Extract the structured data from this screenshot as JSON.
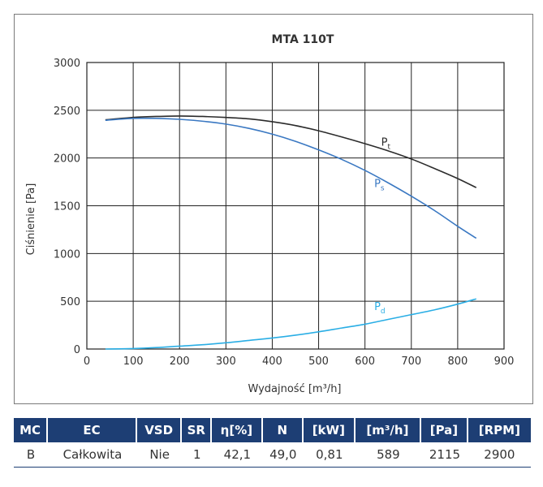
{
  "chart_data": {
    "type": "line",
    "title": "MTA 110T",
    "xlabel": "Wydajność [m³/h]",
    "ylabel": "Ciśnienie [Pa]",
    "xlim": [
      0,
      900
    ],
    "ylim": [
      0,
      3000
    ],
    "xticks": [
      0,
      100,
      200,
      300,
      400,
      500,
      600,
      700,
      800,
      900
    ],
    "yticks": [
      0,
      500,
      1000,
      1500,
      2000,
      2500,
      3000
    ],
    "grid": true,
    "series": [
      {
        "name": "Pt",
        "label_main": "P",
        "label_sub": "t",
        "color": "#2b2b2b",
        "x": [
          40,
          100,
          150,
          200,
          250,
          300,
          350,
          400,
          450,
          500,
          550,
          600,
          650,
          700,
          750,
          800,
          840
        ],
        "y": [
          2400,
          2425,
          2435,
          2440,
          2435,
          2425,
          2410,
          2380,
          2340,
          2285,
          2220,
          2150,
          2075,
          1990,
          1890,
          1785,
          1690
        ]
      },
      {
        "name": "Ps",
        "label_main": "P",
        "label_sub": "s",
        "color": "#3a78c2",
        "x": [
          40,
          100,
          150,
          200,
          250,
          300,
          350,
          400,
          450,
          500,
          550,
          600,
          650,
          700,
          750,
          800,
          840
        ],
        "y": [
          2395,
          2415,
          2415,
          2405,
          2385,
          2355,
          2310,
          2250,
          2175,
          2085,
          1985,
          1870,
          1740,
          1600,
          1450,
          1285,
          1160
        ]
      },
      {
        "name": "Pd",
        "label_main": "P",
        "label_sub": "d",
        "color": "#2aaee5",
        "x": [
          40,
          100,
          150,
          200,
          250,
          300,
          350,
          400,
          450,
          500,
          550,
          600,
          650,
          700,
          750,
          800,
          840
        ],
        "y": [
          0,
          5,
          15,
          30,
          45,
          65,
          90,
          115,
          145,
          180,
          220,
          260,
          310,
          360,
          410,
          470,
          525
        ]
      }
    ]
  },
  "table": {
    "headers": [
      "MC",
      "EC",
      "VSD",
      "SR",
      "η[%]",
      "N",
      "[kW]",
      "[m³/h]",
      "[Pa]",
      "[RPM]"
    ],
    "row": [
      "B",
      "Całkowita",
      "Nie",
      "1",
      "42,1",
      "49,0",
      "0,81",
      "589",
      "2115",
      "2900"
    ]
  }
}
